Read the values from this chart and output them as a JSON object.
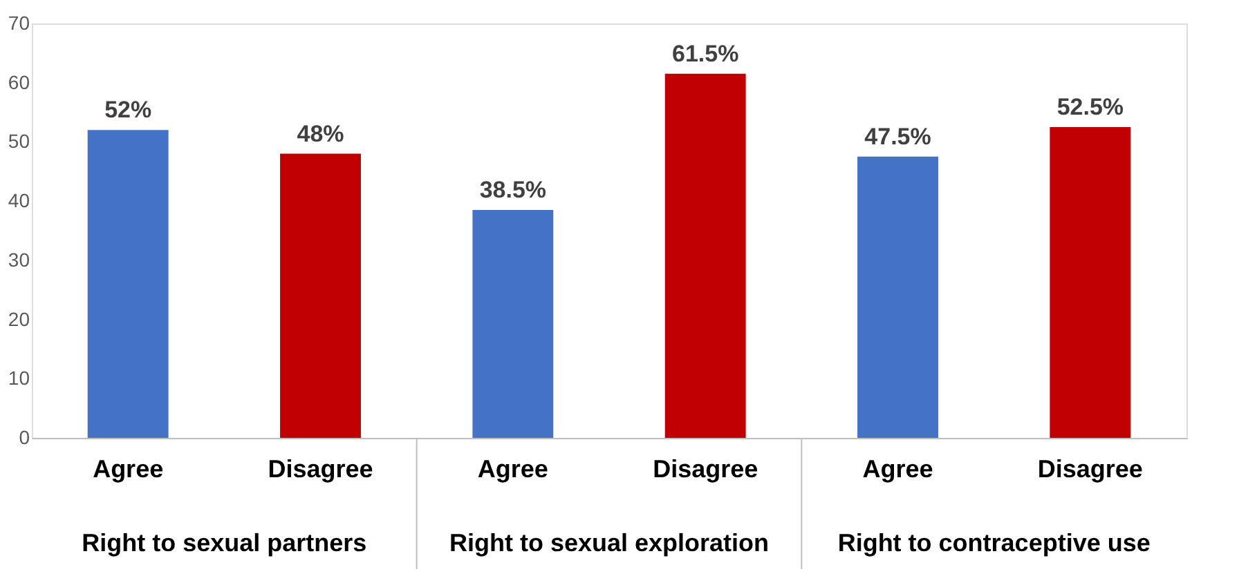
{
  "chart_data": {
    "type": "bar",
    "categories": [
      "Agree",
      "Disagree",
      "Agree",
      "Disagree",
      "Agree",
      "Disagree"
    ],
    "values": [
      52,
      48,
      38.5,
      61.5,
      47.5,
      52.5
    ],
    "colors": [
      "#4472c4",
      "#c00000",
      "#4472c4",
      "#c00000",
      "#4472c4",
      "#c00000"
    ],
    "value_labels": [
      "52%",
      "48%",
      "38.5%",
      "61.5%",
      "47.5%",
      "52.5%"
    ],
    "annotations": [
      "Right to sexual partners",
      "Right to sexual exploration",
      "Right to contraceptive use"
    ],
    "ylim": [
      0,
      70
    ],
    "yticks": [
      0,
      10,
      20,
      30,
      40,
      50,
      60,
      70
    ],
    "grid": false
  }
}
